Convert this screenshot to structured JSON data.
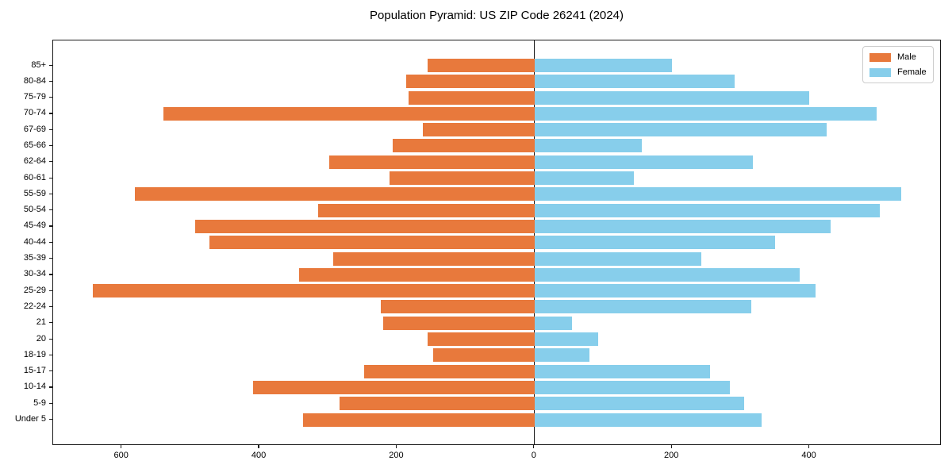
{
  "title": "Population Pyramid: US ZIP Code 26241 (2024)",
  "chart_data": {
    "type": "bar",
    "subtype": "population-pyramid",
    "title": "Population Pyramid: US ZIP Code 26241 (2024)",
    "xlabel": "",
    "ylabel": "",
    "grid": false,
    "legend_position": "upper right",
    "xlim": [
      -700,
      592
    ],
    "x_ticks": [
      {
        "label": "600",
        "value": -600
      },
      {
        "label": "400",
        "value": -400
      },
      {
        "label": "200",
        "value": -200
      },
      {
        "label": "0",
        "value": 0
      },
      {
        "label": "200",
        "value": 200
      },
      {
        "label": "400",
        "value": 400
      }
    ],
    "categories": [
      "85+",
      "80-84",
      "75-79",
      "70-74",
      "67-69",
      "65-66",
      "62-64",
      "60-61",
      "55-59",
      "50-54",
      "45-49",
      "40-44",
      "35-39",
      "30-34",
      "25-29",
      "22-24",
      "21",
      "20",
      "18-19",
      "15-17",
      "10-14",
      "5-9",
      "Under 5"
    ],
    "series": [
      {
        "name": "Male",
        "color": "#E8793C",
        "direction": "left",
        "values": [
          155,
          187,
          183,
          540,
          163,
          206,
          298,
          211,
          581,
          315,
          493,
          473,
          293,
          342,
          642,
          223,
          220,
          155,
          147,
          248,
          409,
          283,
          337
        ]
      },
      {
        "name": "Female",
        "color": "#87CEEB",
        "direction": "right",
        "values": [
          200,
          291,
          399,
          498,
          425,
          156,
          318,
          144,
          533,
          502,
          430,
          350,
          242,
          386,
          409,
          315,
          55,
          92,
          80,
          255,
          284,
          305,
          330
        ]
      }
    ],
    "axis_color": "#1a1a1a"
  }
}
